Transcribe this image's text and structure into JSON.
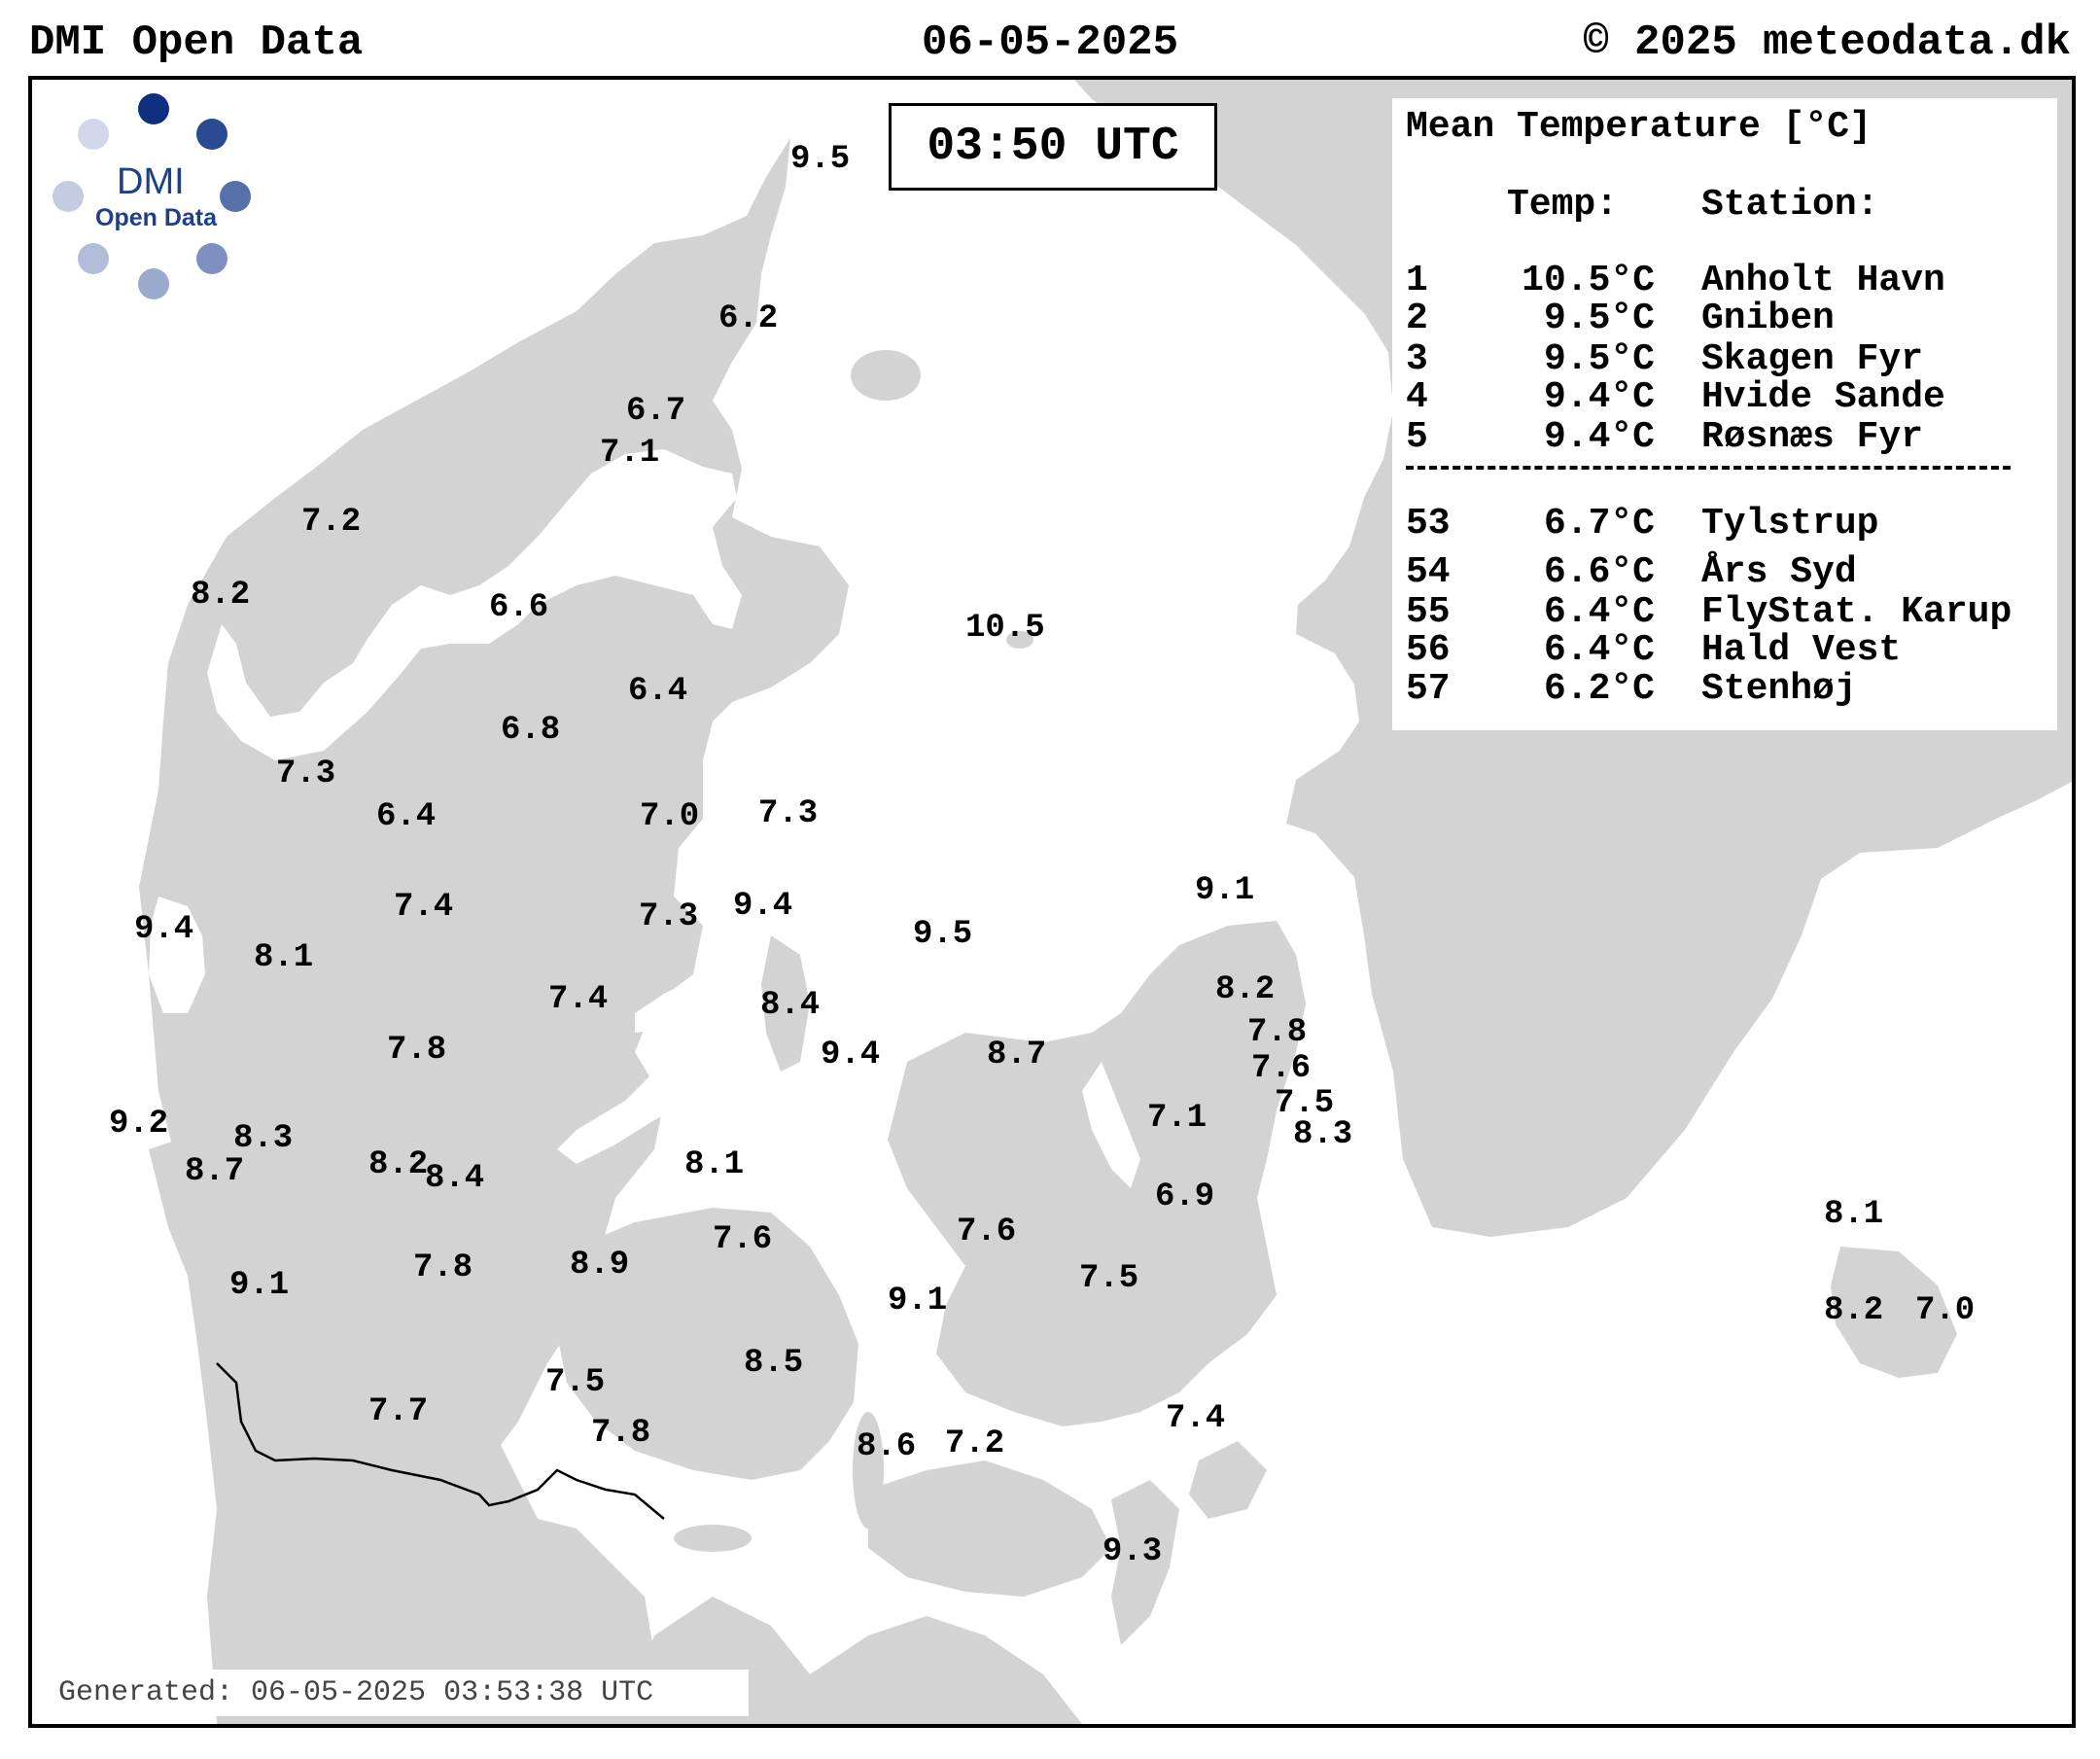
{
  "header": {
    "source": "DMI Open Data",
    "date": "06-05-2025",
    "copyright": "© 2025 meteodata.dk"
  },
  "time_label": "03:50 UTC",
  "logo": {
    "line1": "DMI",
    "line2": "Open Data"
  },
  "legend": {
    "title": "Mean Temperature [°C]",
    "col_temp": "Temp:",
    "col_station": "Station:",
    "top": [
      {
        "rank": "1",
        "temp": "10.5°C",
        "station": "Anholt Havn"
      },
      {
        "rank": "2",
        "temp": "9.5°C",
        "station": "Gniben"
      },
      {
        "rank": "3",
        "temp": "9.5°C",
        "station": "Skagen Fyr"
      },
      {
        "rank": "4",
        "temp": "9.4°C",
        "station": "Hvide Sande"
      },
      {
        "rank": "5",
        "temp": "9.4°C",
        "station": "Røsnæs Fyr"
      }
    ],
    "bottom": [
      {
        "rank": "53",
        "temp": "6.7°C",
        "station": "Tylstrup"
      },
      {
        "rank": "54",
        "temp": "6.6°C",
        "station": "Års Syd"
      },
      {
        "rank": "55",
        "temp": "6.4°C",
        "station": "FlyStat. Karup"
      },
      {
        "rank": "56",
        "temp": "6.4°C",
        "station": "Hald Vest"
      },
      {
        "rank": "57",
        "temp": "6.2°C",
        "station": "Stenhøj"
      }
    ]
  },
  "generated": "Generated: 06-05-2025 03:53:38 UTC",
  "colors": {
    "max": "#ff0000",
    "min": "#0000ff",
    "normal": "#000000",
    "land": "#d3d3d3",
    "sea": "#ffffff"
  },
  "station_values": [
    {
      "v": "9.5"
    },
    {
      "v": "6.2",
      "kind": "min"
    },
    {
      "v": "6.7"
    },
    {
      "v": "7.1"
    },
    {
      "v": "7.2"
    },
    {
      "v": "8.2"
    },
    {
      "v": "6.6"
    },
    {
      "v": "10.5",
      "kind": "max"
    },
    {
      "v": "6.4"
    },
    {
      "v": "6.8"
    },
    {
      "v": "7.3"
    },
    {
      "v": "6.4"
    },
    {
      "v": "7.0"
    },
    {
      "v": "7.3"
    },
    {
      "v": "9.1"
    },
    {
      "v": "7.4"
    },
    {
      "v": "7.3"
    },
    {
      "v": "9.4"
    },
    {
      "v": "9.4"
    },
    {
      "v": "8.1"
    },
    {
      "v": "9.5"
    },
    {
      "v": "8.2"
    },
    {
      "v": "7.4"
    },
    {
      "v": "8.4"
    },
    {
      "v": "7.8"
    },
    {
      "v": "7.8"
    },
    {
      "v": "9.4"
    },
    {
      "v": "8.7"
    },
    {
      "v": "7.6"
    },
    {
      "v": "7.5"
    },
    {
      "v": "9.2"
    },
    {
      "v": "8.3"
    },
    {
      "v": "7.1"
    },
    {
      "v": "8.3"
    },
    {
      "v": "8.7"
    },
    {
      "v": "8.2"
    },
    {
      "v": "8.4"
    },
    {
      "v": "8.1"
    },
    {
      "v": "6.9"
    },
    {
      "v": "8.1"
    },
    {
      "v": "7.6"
    },
    {
      "v": "7.6"
    },
    {
      "v": "9.1"
    },
    {
      "v": "7.8"
    },
    {
      "v": "8.9"
    },
    {
      "v": "7.5"
    },
    {
      "v": "9.1"
    },
    {
      "v": "8.2"
    },
    {
      "v": "7.0"
    },
    {
      "v": "8.5"
    },
    {
      "v": "7.5"
    },
    {
      "v": "7.7"
    },
    {
      "v": "7.4"
    },
    {
      "v": "7.8"
    },
    {
      "v": "8.6"
    },
    {
      "v": "7.2"
    },
    {
      "v": "9.3"
    }
  ]
}
